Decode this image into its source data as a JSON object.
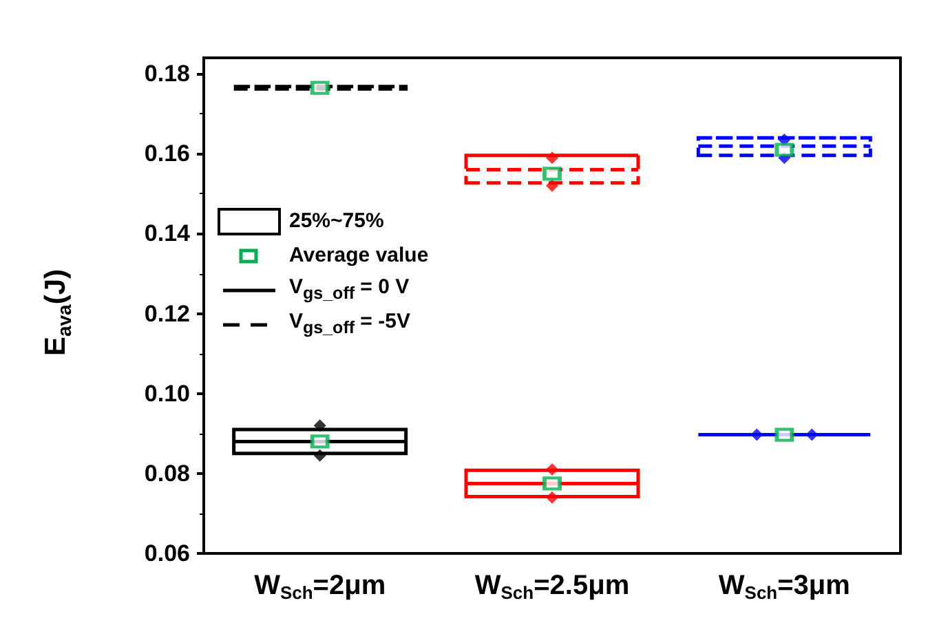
{
  "chart_data": {
    "type": "box",
    "ylabel": "E$_{ava}$(J)",
    "categories": [
      "W$_{Sch}$=2μm",
      "W$_{Sch}$=2.5μm",
      "W$_{Sch}$=3μm"
    ],
    "series": [
      {
        "name": "V$_{gs_off}$ = 0 V",
        "color": "#000000",
        "colors": [
          "#000000",
          "#ff0000",
          "#0000ff"
        ],
        "line_style": "solid",
        "boxes": [
          {
            "low": 0.085,
            "q1": 0.085,
            "median": 0.088,
            "q3": 0.091,
            "high": 0.091,
            "mean": 0.088
          },
          {
            "low": 0.0742,
            "q1": 0.0742,
            "median": 0.0775,
            "q3": 0.0808,
            "high": 0.0808,
            "mean": 0.0775
          },
          {
            "low": 0.0897,
            "q1": 0.0897,
            "median": 0.0897,
            "q3": 0.0897,
            "high": 0.0897,
            "mean": 0.0897
          }
        ]
      },
      {
        "name": "V$_{gs_off}$ = -5V",
        "color": "#000000",
        "colors": [
          "#000000",
          "#ff0000",
          "#0000ff"
        ],
        "line_style": "dashed",
        "boxes": [
          {
            "low": 0.1762,
            "q1": 0.1762,
            "median": 0.1765,
            "q3": 0.1768,
            "high": 0.1768,
            "mean": 0.1765
          },
          {
            "low": 0.1527,
            "q1": 0.1527,
            "median": 0.156,
            "q3": 0.1596,
            "high": 0.1596,
            "mean": 0.155
          },
          {
            "low": 0.1596,
            "q1": 0.1596,
            "median": 0.1619,
            "q3": 0.164,
            "high": 0.164,
            "mean": 0.161
          }
        ]
      },
      {
        "type": "scatter",
        "x": [
          "W$_{Sch}$=2μm",
          "W$_{Sch}$=2μm",
          "W$_{Sch}$=2.5μm",
          "W$_{Sch}$=2.5μm",
          "W$_{Sch}$=3μm",
          "W$_{Sch}$=3μm",
          "W$_{Sch}$=2.5μm",
          "W$_{Sch}$=2.5μm",
          "W$_{Sch}$=3μm",
          "W$_{Sch}$=3μm"
        ],
        "values": [
          0.0845,
          0.092,
          0.074,
          0.081,
          0.0897,
          0.0897,
          0.152,
          0.159,
          0.159,
          0.1635
        ],
        "colors": [
          "#000000",
          "#000000",
          "#ff0000",
          "#ff0000",
          "#0000ff",
          "#0000ff",
          "#ff0000",
          "#ff0000",
          "#0000ff",
          "#0000ff"
        ]
      }
    ],
    "annotations": [
      "25%~75%",
      "Average value"
    ],
    "marker": "diamond",
    "legend": "left",
    "ylim": [
      0.06,
      0.184
    ],
    "yticks": [
      0.06,
      0.08,
      {
        "value": 0.1,
        "label": "0.10"
      },
      0.12,
      0.14,
      0.16,
      0.18
    ]
  }
}
